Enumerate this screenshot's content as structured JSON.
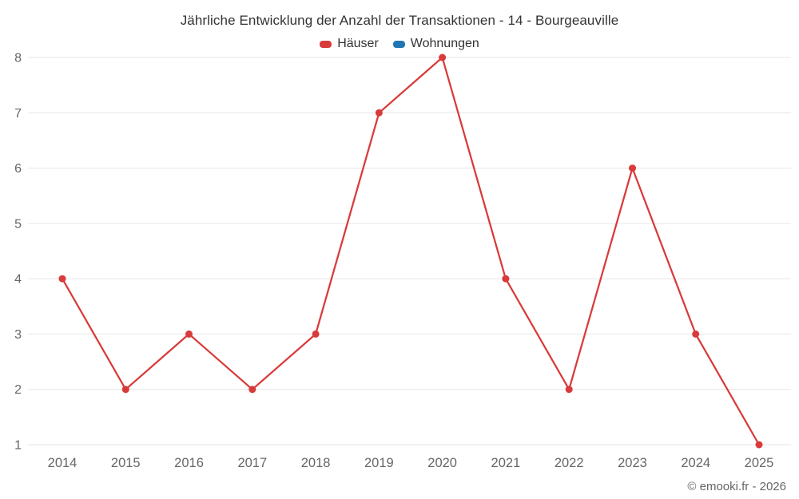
{
  "chart_data": {
    "type": "line",
    "title": "Jährliche Entwicklung der Anzahl der Transaktionen - 14 - Bourgeauville",
    "categories": [
      "2014",
      "2015",
      "2016",
      "2017",
      "2018",
      "2019",
      "2020",
      "2021",
      "2022",
      "2023",
      "2024",
      "2025"
    ],
    "series": [
      {
        "name": "Häuser",
        "color": "#d93a3a",
        "values": [
          4,
          2,
          3,
          2,
          3,
          7,
          8,
          4,
          2,
          6,
          3,
          1
        ]
      },
      {
        "name": "Wohnungen",
        "color": "#1f77b4",
        "values": []
      }
    ],
    "ylim": [
      1,
      8
    ],
    "yticks": [
      1,
      2,
      3,
      4,
      5,
      6,
      7,
      8
    ],
    "grid": true,
    "grid_color": "#e6e6e6",
    "axis_label_color": "#666666",
    "legend_position": "top"
  },
  "footer": {
    "copyright": "© emooki.fr - 2026"
  }
}
